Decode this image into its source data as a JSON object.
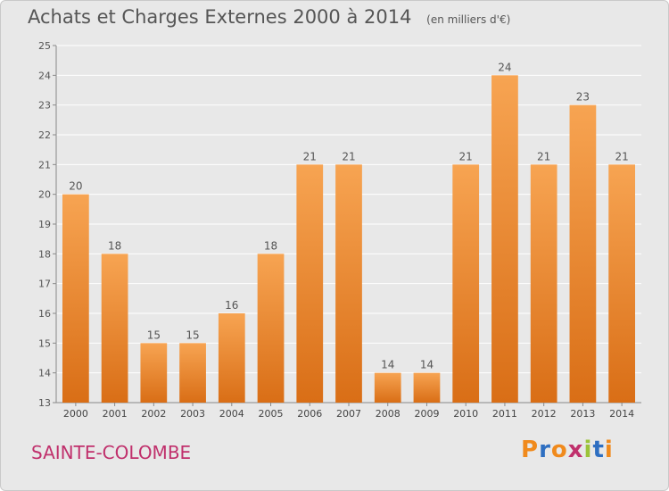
{
  "header": {
    "title": "Achats et Charges Externes 2000 à 2014",
    "subtitle": "(en milliers d'€)"
  },
  "footer": {
    "location": "SAINTE-COLOMBE",
    "brand": "Proxiti"
  },
  "colors": {
    "background": "#e8e8e8",
    "bar_light": "#f7a452",
    "bar_dark": "#d96e16",
    "location_text": "#c0306c",
    "brand_letters": [
      "#f08a1c",
      "#2e6fc1",
      "#f08a1c",
      "#c0306c",
      "#9cc33a",
      "#2e6fc1",
      "#f08a1c"
    ]
  },
  "chart_data": {
    "type": "bar",
    "categories": [
      "2000",
      "2001",
      "2002",
      "2003",
      "2004",
      "2005",
      "2006",
      "2007",
      "2008",
      "2009",
      "2010",
      "2011",
      "2012",
      "2013",
      "2014"
    ],
    "values": [
      20,
      18,
      15,
      15,
      16,
      18,
      21,
      21,
      14,
      14,
      21,
      24,
      21,
      23,
      21
    ],
    "title": "Achats et Charges Externes 2000 à 2014",
    "subtitle": "(en milliers d'€)",
    "xlabel": "",
    "ylabel": "",
    "ylim": [
      13,
      25
    ],
    "yticks": [
      13,
      14,
      15,
      16,
      17,
      18,
      19,
      20,
      21,
      22,
      23,
      24,
      25
    ],
    "grid": true,
    "legend": "none"
  }
}
